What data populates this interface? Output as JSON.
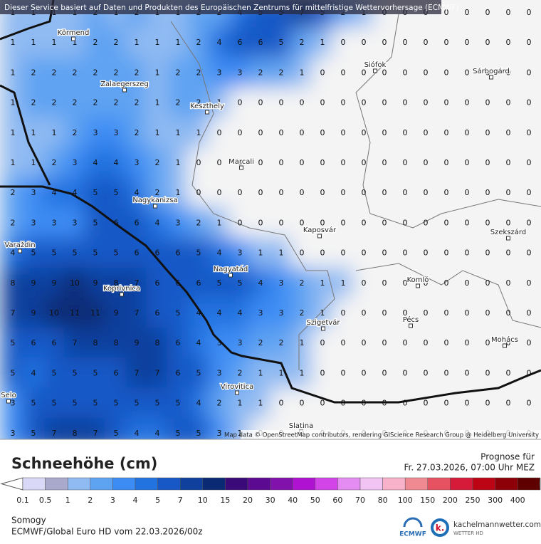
{
  "header": {
    "service_note": "Dieser Service basiert auf Daten und Produkten des Europäischen Zentrums für mittelfristige Wettervorhersage (ECMWF)"
  },
  "grid": {
    "rows": [
      [
        1,
        1,
        1,
        1,
        2,
        1,
        2,
        1,
        1,
        2,
        2,
        4,
        5,
        5,
        7,
        5,
        2,
        1,
        0,
        0,
        0,
        0,
        0,
        0,
        0,
        0
      ],
      [
        1,
        1,
        1,
        1,
        2,
        2,
        1,
        1,
        1,
        2,
        4,
        6,
        6,
        5,
        2,
        1,
        0,
        0,
        0,
        0,
        0,
        0,
        0,
        0,
        0,
        0
      ],
      [
        1,
        2,
        2,
        2,
        2,
        2,
        2,
        1,
        2,
        2,
        3,
        3,
        2,
        2,
        1,
        0,
        0,
        0,
        0,
        0,
        0,
        0,
        0,
        0,
        0,
        0
      ],
      [
        1,
        2,
        2,
        2,
        2,
        2,
        2,
        1,
        2,
        2,
        1,
        0,
        0,
        0,
        0,
        0,
        0,
        0,
        0,
        0,
        0,
        0,
        0,
        0,
        0,
        0
      ],
      [
        1,
        1,
        1,
        2,
        3,
        3,
        2,
        1,
        1,
        1,
        0,
        0,
        0,
        0,
        0,
        0,
        0,
        0,
        0,
        0,
        0,
        0,
        0,
        0,
        0,
        0
      ],
      [
        1,
        1,
        2,
        3,
        4,
        4,
        3,
        2,
        1,
        0,
        0,
        0,
        0,
        0,
        0,
        0,
        0,
        0,
        0,
        0,
        0,
        0,
        0,
        0,
        0,
        0
      ],
      [
        2,
        3,
        4,
        4,
        5,
        5,
        4,
        2,
        1,
        0,
        0,
        0,
        0,
        0,
        0,
        0,
        0,
        0,
        0,
        0,
        0,
        0,
        0,
        0,
        0,
        0
      ],
      [
        2,
        3,
        3,
        3,
        5,
        6,
        6,
        4,
        3,
        2,
        1,
        0,
        0,
        0,
        0,
        0,
        0,
        0,
        0,
        0,
        0,
        0,
        0,
        0,
        0,
        0
      ],
      [
        4,
        5,
        5,
        5,
        5,
        5,
        6,
        6,
        6,
        5,
        4,
        3,
        1,
        1,
        0,
        0,
        0,
        0,
        0,
        0,
        0,
        0,
        0,
        0,
        0,
        0
      ],
      [
        8,
        9,
        9,
        10,
        9,
        8,
        7,
        6,
        6,
        6,
        5,
        5,
        4,
        3,
        2,
        1,
        1,
        0,
        0,
        0,
        0,
        0,
        0,
        0,
        0,
        0
      ],
      [
        7,
        9,
        10,
        11,
        11,
        9,
        7,
        6,
        5,
        4,
        4,
        4,
        3,
        3,
        2,
        1,
        0,
        0,
        0,
        0,
        0,
        0,
        0,
        0,
        0,
        0
      ],
      [
        5,
        6,
        6,
        7,
        8,
        8,
        9,
        8,
        6,
        4,
        3,
        3,
        2,
        2,
        1,
        0,
        0,
        0,
        0,
        0,
        0,
        0,
        0,
        0,
        0,
        0
      ],
      [
        5,
        4,
        5,
        5,
        5,
        6,
        7,
        7,
        6,
        5,
        3,
        2,
        1,
        1,
        1,
        0,
        0,
        0,
        0,
        0,
        0,
        0,
        0,
        0,
        0,
        0
      ],
      [
        3,
        5,
        5,
        5,
        5,
        5,
        5,
        5,
        5,
        4,
        2,
        1,
        1,
        0,
        0,
        0,
        0,
        0,
        0,
        0,
        0,
        0,
        0,
        0,
        0,
        0
      ],
      [
        3,
        5,
        7,
        8,
        7,
        5,
        4,
        4,
        5,
        5,
        3,
        1,
        0,
        0,
        0,
        0,
        0,
        0,
        0,
        0,
        0,
        0,
        0,
        0,
        0,
        0
      ]
    ]
  },
  "cities": [
    "Körmend",
    "Zalaegerszeg",
    "Keszthely",
    "Siófok",
    "Sárbogárd",
    "Marcali",
    "Nagykanizsa",
    "Kaposvár",
    "Szekszárd",
    "Varaždin",
    "Nagyatád",
    "Koprivnica",
    "Komló",
    "Pécs",
    "Szigetvár",
    "Mohács",
    "Virovitica",
    "Selo",
    "Slatina"
  ],
  "attribution": "Map data © OpenStreetMap contributors, rendering GIScience Research Group @ Heidelberg University",
  "legend": {
    "title": "Schneehöhe (cm)",
    "labels": [
      0.1,
      0.5,
      1,
      2,
      3,
      4,
      5,
      7,
      10,
      15,
      20,
      30,
      40,
      50,
      60,
      70,
      80,
      100,
      150,
      200,
      250,
      300,
      400
    ],
    "colors": [
      "#d9d9f7",
      "#a9a9cc",
      "#8fbaf2",
      "#5ea3f2",
      "#3d8cf4",
      "#2272e0",
      "#1858c6",
      "#10409e",
      "#0b2a74",
      "#3a0a78",
      "#5c0a92",
      "#8212ac",
      "#b012d2",
      "#d244e8",
      "#e48cf2",
      "#f2c4f4",
      "#f8b2ca",
      "#f08a92",
      "#e65262",
      "#d61a3a",
      "#bc0414",
      "#8e0008",
      "#5e0000"
    ]
  },
  "forecast": {
    "label": "Prognose für",
    "time": "Fr. 27.03.2026, 07:00 Uhr MEZ"
  },
  "footer": {
    "region": "Somogy",
    "model": "ECMWF/Global Euro HD vom  22.03.2026/00z",
    "ecmwf": "ECMWF",
    "site": "kachelmannwetter.com",
    "site_sub": "WETTER HD"
  }
}
